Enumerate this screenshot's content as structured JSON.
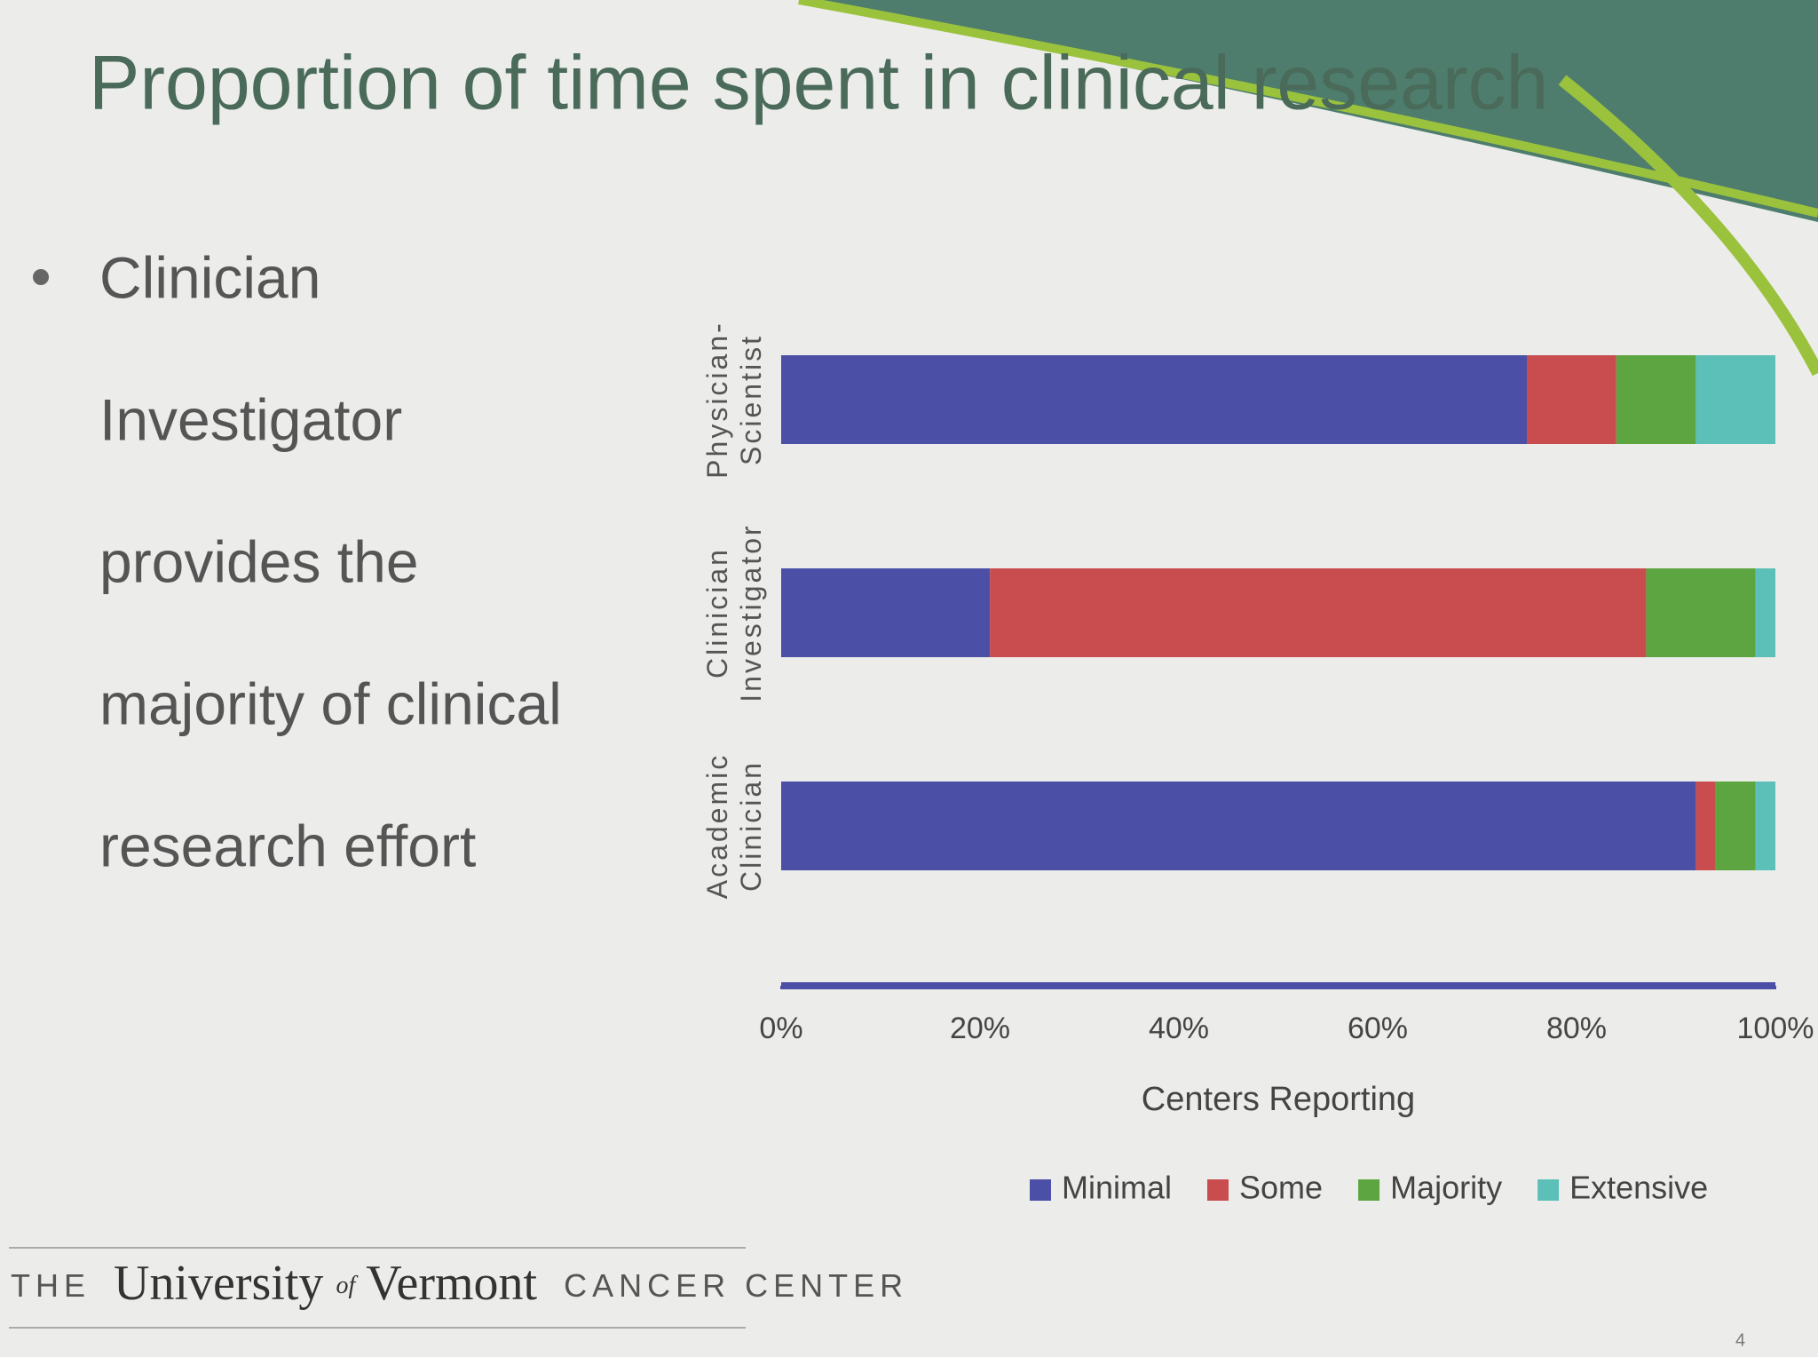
{
  "chart_data": {
    "type": "stacked-barh",
    "title": "Proportion of time spent in clinical research",
    "categories": [
      "Physician-Scientist",
      "Clinician Investigator",
      "Academic Clinician"
    ],
    "series": [
      {
        "name": "Minimal",
        "color": "#4b4fa6",
        "values": [
          75,
          21,
          92
        ]
      },
      {
        "name": "Some",
        "color": "#c94c4e",
        "values": [
          9,
          66,
          2
        ]
      },
      {
        "name": "Majority",
        "color": "#5ca540",
        "values": [
          8,
          11,
          4
        ]
      },
      {
        "name": "Extensive",
        "color": "#5cbfb8",
        "values": [
          8,
          2,
          2
        ]
      }
    ],
    "xlabel": "Centers Reporting",
    "xlim": [
      0,
      100
    ],
    "xticks": [
      {
        "value": 0,
        "label": "0%"
      },
      {
        "value": 20,
        "label": "20%"
      },
      {
        "value": 40,
        "label": "40%"
      },
      {
        "value": 60,
        "label": "60%"
      },
      {
        "value": 80,
        "label": "80%"
      },
      {
        "value": 100,
        "label": "100%"
      }
    ],
    "legend": "bottom"
  },
  "slide": {
    "bullet": [
      "Clinician",
      "Investigator",
      "provides the",
      "majority of clinical",
      "research effort"
    ],
    "footer": {
      "the": "THE",
      "university": "University",
      "of": "of",
      "vermont": "Vermont",
      "unit": "CANCER CENTER"
    },
    "page_number": "4"
  }
}
